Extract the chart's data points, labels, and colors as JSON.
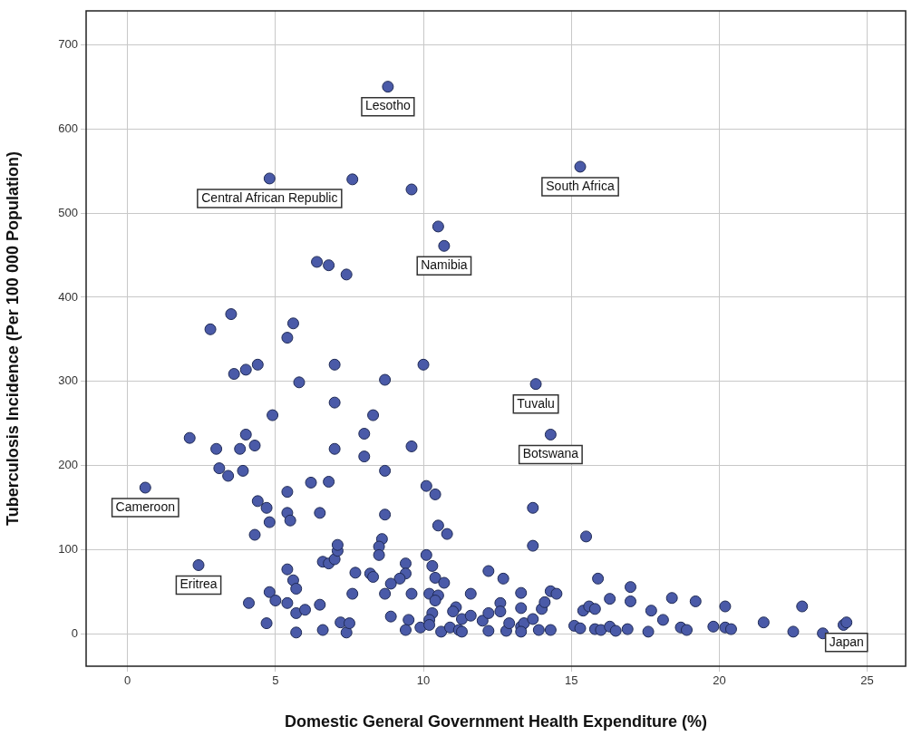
{
  "chart_data": {
    "type": "scatter",
    "xlabel": "Domestic General Government Health Expenditure (%)",
    "ylabel": "Tuberculosis Incidence (Per 100 000 Population)",
    "xlim": [
      -1.4,
      26.3
    ],
    "ylim": [
      -38,
      740
    ],
    "xticks": [
      0,
      5,
      10,
      15,
      20,
      25
    ],
    "yticks": [
      0,
      100,
      200,
      300,
      400,
      500,
      600,
      700
    ],
    "grid": true,
    "marker": "circle",
    "legend": false,
    "series": [
      {
        "color": "#4a5aa8",
        "x": [
          8.8,
          4.8,
          7.6,
          9.6,
          15.3,
          10.5,
          10.7,
          6.4,
          6.8,
          7.4,
          2.8,
          3.5,
          5.6,
          5.4,
          3.6,
          4.0,
          4.4,
          5.8,
          7.0,
          8.7,
          10.0,
          13.8,
          14.3,
          7.0,
          4.9,
          2.1,
          4.0,
          4.3,
          3.8,
          3.0,
          8.0,
          8.3,
          9.6,
          7.0,
          3.1,
          3.4,
          3.9,
          8.0,
          8.7,
          0.6,
          6.2,
          6.8,
          4.4,
          4.7,
          5.4,
          5.5,
          4.8,
          5.4,
          4.3,
          6.5,
          8.7,
          10.1,
          10.4,
          10.5,
          10.8,
          13.7,
          13.7,
          15.5,
          2.4,
          4.1,
          4.7,
          4.8,
          5.0,
          5.4,
          5.4,
          5.6,
          5.7,
          5.7,
          6.0,
          5.7,
          6.5,
          6.6,
          6.6,
          6.8,
          7.0,
          7.1,
          7.1,
          7.2,
          7.4,
          7.5,
          7.7,
          7.6,
          8.6,
          8.5,
          8.5,
          9.4,
          9.4,
          9.2,
          8.9,
          8.7,
          8.2,
          8.3,
          9.6,
          8.9,
          9.5,
          9.4,
          9.9,
          10.1,
          10.3,
          10.4,
          10.7,
          10.2,
          10.5,
          10.4,
          10.3,
          10.2,
          10.2,
          10.6,
          11.1,
          11.0,
          10.9,
          11.2,
          11.3,
          11.3,
          11.6,
          11.6,
          12.2,
          12.0,
          12.2,
          12.2,
          12.7,
          12.6,
          12.6,
          12.8,
          12.9,
          13.3,
          13.3,
          13.3,
          13.4,
          13.3,
          13.7,
          13.9,
          14.0,
          14.1,
          14.3,
          14.5,
          14.3,
          15.1,
          15.3,
          15.4,
          15.6,
          15.8,
          15.9,
          15.8,
          16.0,
          16.3,
          16.3,
          17.0,
          17.0,
          17.7,
          18.4,
          19.2,
          20.2,
          22.8,
          18.1,
          21.5,
          16.5,
          16.9,
          17.6,
          18.7,
          18.9,
          19.8,
          20.2,
          20.4,
          22.5,
          23.5,
          24.2,
          24.3
        ],
        "values": [
          650,
          541,
          540,
          528,
          555,
          484,
          461,
          442,
          438,
          427,
          362,
          380,
          369,
          352,
          309,
          314,
          320,
          299,
          320,
          302,
          320,
          297,
          237,
          275,
          260,
          233,
          237,
          224,
          220,
          220,
          238,
          260,
          223,
          220,
          197,
          188,
          194,
          211,
          194,
          174,
          180,
          181,
          158,
          150,
          144,
          135,
          133,
          169,
          118,
          144,
          142,
          176,
          166,
          129,
          119,
          150,
          105,
          116,
          82,
          37,
          13,
          50,
          40,
          37,
          77,
          64,
          54,
          25,
          29,
          2,
          35,
          5,
          86,
          84,
          89,
          99,
          106,
          14,
          2,
          13,
          73,
          48,
          113,
          104,
          94,
          84,
          72,
          66,
          60,
          48,
          72,
          68,
          48,
          21,
          17,
          5,
          8,
          94,
          81,
          67,
          61,
          48,
          46,
          40,
          25,
          17,
          11,
          3,
          32,
          27,
          8,
          5,
          3,
          18,
          48,
          22,
          75,
          16,
          25,
          4,
          66,
          37,
          27,
          4,
          13,
          49,
          31,
          9,
          13,
          3,
          18,
          5,
          30,
          38,
          51,
          48,
          5,
          10,
          7,
          28,
          33,
          30,
          66,
          6,
          5,
          9,
          42,
          56,
          39,
          28,
          43,
          39,
          33,
          33,
          17,
          14,
          4,
          6,
          3,
          8,
          5,
          9,
          8,
          6,
          3,
          1,
          11,
          14
        ]
      }
    ],
    "annotations": [
      {
        "text": "Lesotho",
        "x": 8.8,
        "y": 650
      },
      {
        "text": "Central African Republic",
        "x": 4.8,
        "y": 541
      },
      {
        "text": "South Africa",
        "x": 15.3,
        "y": 555
      },
      {
        "text": "Namibia",
        "x": 10.7,
        "y": 461
      },
      {
        "text": "Tuvalu",
        "x": 13.8,
        "y": 297
      },
      {
        "text": "Botswana",
        "x": 14.3,
        "y": 237
      },
      {
        "text": "Cameroon",
        "x": 0.6,
        "y": 174
      },
      {
        "text": "Eritrea",
        "x": 2.4,
        "y": 82
      },
      {
        "text": "Japan",
        "x": 24.3,
        "y": 14
      }
    ]
  }
}
